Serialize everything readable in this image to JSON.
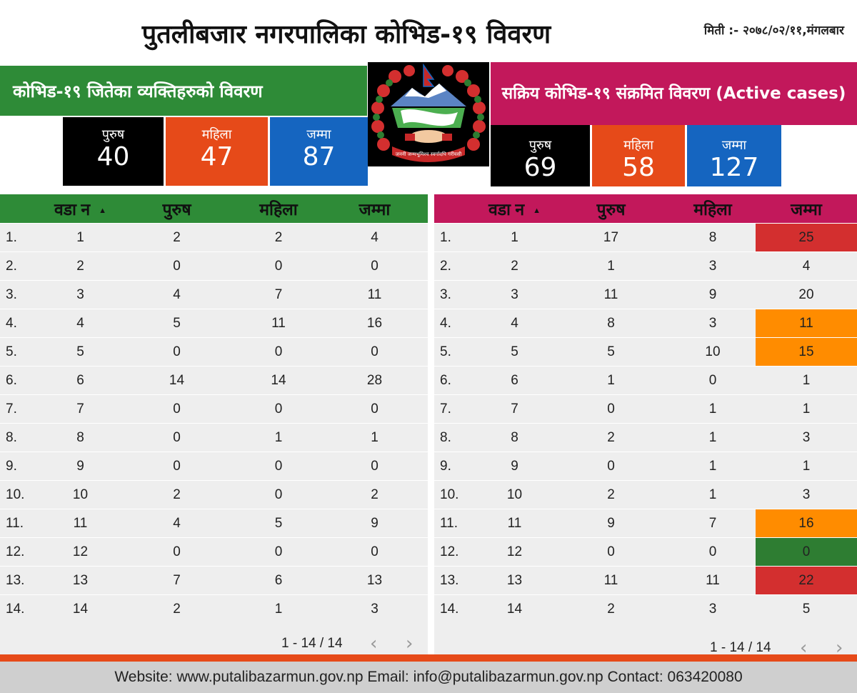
{
  "header": {
    "title": "पुतलीबजार नगरपालिका कोभिड-१९ विवरण",
    "date": "मिती :- २०७८/०२/११,मंगलबार"
  },
  "left": {
    "banner": "कोभिड-१९ जितेका व्यक्तिहरुको  विवरण",
    "cards": [
      {
        "label": "पुरुष",
        "value": "40"
      },
      {
        "label": "महिला",
        "value": "47"
      },
      {
        "label": "जम्मा",
        "value": "87"
      }
    ],
    "table": {
      "headers": [
        "वडा न",
        "पुरुष",
        "महिला",
        "जम्मा"
      ],
      "rows": [
        [
          "1.",
          "1",
          "2",
          "2",
          "4"
        ],
        [
          "2.",
          "2",
          "0",
          "0",
          "0"
        ],
        [
          "3.",
          "3",
          "4",
          "7",
          "11"
        ],
        [
          "4.",
          "4",
          "5",
          "11",
          "16"
        ],
        [
          "5.",
          "5",
          "0",
          "0",
          "0"
        ],
        [
          "6.",
          "6",
          "14",
          "14",
          "28"
        ],
        [
          "7.",
          "7",
          "0",
          "0",
          "0"
        ],
        [
          "8.",
          "8",
          "0",
          "1",
          "1"
        ],
        [
          "9.",
          "9",
          "0",
          "0",
          "0"
        ],
        [
          "10.",
          "10",
          "2",
          "0",
          "2"
        ],
        [
          "11.",
          "11",
          "4",
          "5",
          "9"
        ],
        [
          "12.",
          "12",
          "0",
          "0",
          "0"
        ],
        [
          "13.",
          "13",
          "7",
          "6",
          "13"
        ],
        [
          "14.",
          "14",
          "2",
          "1",
          "3"
        ]
      ]
    },
    "pager": "1 - 14 / 14"
  },
  "right": {
    "banner": "सक्रिय  कोभिड-१९ संक्रमित  विवरण (Active cases)",
    "cards": [
      {
        "label": "पुरुष",
        "value": "69"
      },
      {
        "label": "महिला",
        "value": "58"
      },
      {
        "label": "जम्मा",
        "value": "127"
      }
    ],
    "table": {
      "headers": [
        "वडा न",
        "पुरुष",
        "महिला",
        "जम्मा"
      ],
      "rows": [
        [
          "1.",
          "1",
          "17",
          "8",
          "25"
        ],
        [
          "2.",
          "2",
          "1",
          "3",
          "4"
        ],
        [
          "3.",
          "3",
          "11",
          "9",
          "20"
        ],
        [
          "4.",
          "4",
          "8",
          "3",
          "11"
        ],
        [
          "5.",
          "5",
          "5",
          "10",
          "15"
        ],
        [
          "6.",
          "6",
          "1",
          "0",
          "1"
        ],
        [
          "7.",
          "7",
          "0",
          "1",
          "1"
        ],
        [
          "8.",
          "8",
          "2",
          "1",
          "3"
        ],
        [
          "9.",
          "9",
          "0",
          "1",
          "1"
        ],
        [
          "10.",
          "10",
          "2",
          "1",
          "3"
        ],
        [
          "11.",
          "11",
          "9",
          "7",
          "16"
        ],
        [
          "12.",
          "12",
          "0",
          "0",
          "0"
        ],
        [
          "13.",
          "13",
          "11",
          "11",
          "22"
        ],
        [
          "14.",
          "14",
          "2",
          "3",
          "5"
        ]
      ],
      "highlight": [
        "red",
        "",
        "",
        "orange",
        "orange",
        "",
        "",
        "",
        "",
        "",
        "orange",
        "green",
        "red",
        ""
      ]
    },
    "pager": "1 - 14 / 14"
  },
  "emblem": {
    "motto": "जननी जन्मभूमिश्च स्वर्गादपि गरीयसी"
  },
  "footer": {
    "text": "Website: www.putalibazarmun.gov.np Email: info@putalibazarmun.gov.np  Contact: 063420080"
  },
  "colors": {
    "green": "#2e8b37",
    "pink": "#c2185b",
    "orange": "#e64a19",
    "blue": "#1565c0"
  }
}
